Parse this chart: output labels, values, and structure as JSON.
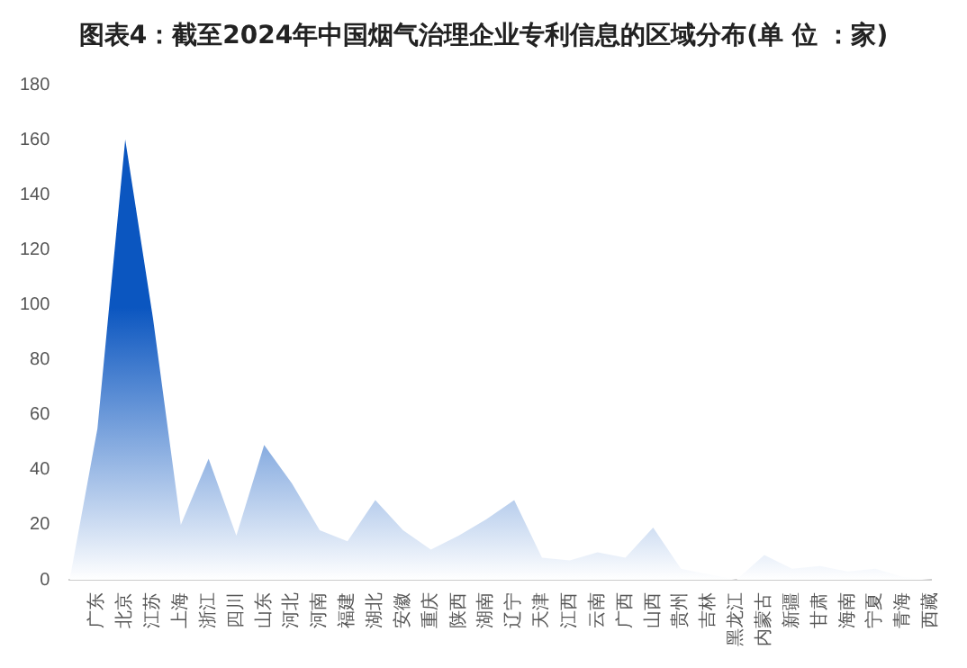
{
  "chart_data": {
    "type": "area",
    "title": "图表4：截至2024年中国烟气治理企业专利信息的区域分布(单 位 ：家)",
    "categories": [
      null,
      "广东",
      "北京",
      "江苏",
      "上海",
      "浙江",
      "四川",
      "山东",
      "河北",
      "河南",
      "福建",
      "湖北",
      "安徽",
      "重庆",
      "陕西",
      "湖南",
      "辽宁",
      "天津",
      "江西",
      "云南",
      "广西",
      "山西",
      "贵州",
      "吉林",
      "黑龙江",
      "内蒙古",
      "新疆",
      "甘肃",
      "海南",
      "宁夏",
      "青海",
      "西藏"
    ],
    "series": [
      {
        "color": "#0b56c0",
        "values": [
          0,
          55,
          160,
          95,
          20,
          44,
          16,
          49,
          35,
          18,
          14,
          29,
          18,
          11,
          16,
          22,
          29,
          8,
          7,
          10,
          8,
          19,
          4,
          2,
          0,
          9,
          4,
          5,
          3,
          4,
          1,
          0
        ]
      }
    ],
    "ylim": [
      0,
      180
    ],
    "yticks": [
      0,
      20,
      40,
      60,
      80,
      100,
      120,
      140,
      160,
      180
    ],
    "grid": false,
    "legend": false
  }
}
